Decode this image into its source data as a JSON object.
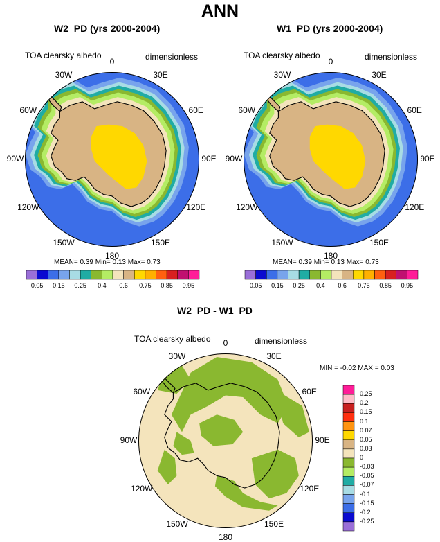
{
  "main_title": "ANN",
  "panels": [
    {
      "title": "W2_PD (yrs 2000-2004)",
      "left_label": "TOA clearsky albedo",
      "right_label": "dimensionless",
      "lon_labels": [
        "0",
        "30E",
        "60E",
        "90E",
        "120E",
        "150E",
        "180",
        "150W",
        "120W",
        "90W",
        "60W",
        "30W"
      ],
      "stats": "MEAN=  0.39  Min=  0.13  Max=  0.73"
    },
    {
      "title": "W1_PD (yrs 2000-2004)",
      "left_label": "TOA clearsky albedo",
      "right_label": "dimensionless",
      "lon_labels": [
        "0",
        "30E",
        "60E",
        "90E",
        "120E",
        "150E",
        "180",
        "150W",
        "120W",
        "90W",
        "60W",
        "30W"
      ],
      "stats": "MEAN=  0.39  Min=  0.13  Max=  0.73"
    },
    {
      "title": "W2_PD - W1_PD",
      "left_label": "TOA clearsky albedo",
      "right_label": "dimensionless",
      "lon_labels": [
        "0",
        "30E",
        "60E",
        "90E",
        "120E",
        "150E",
        "180",
        "150W",
        "120W",
        "90W",
        "60W",
        "30W"
      ],
      "stats": "MIN = -0.02 MAX =  0.03"
    }
  ],
  "colorbar_levels": [
    "0.05",
    "0.15",
    "0.25",
    "0.4",
    "0.6",
    "0.75",
    "0.85",
    "0.95"
  ],
  "colorbar_colors": [
    "#9a6fd8",
    "#0a0ad0",
    "#3c6ee8",
    "#78a4ec",
    "#a8dce4",
    "#20aca4",
    "#8ab830",
    "#b4ec64",
    "#f4e4bc",
    "#d8b484",
    "#ffd800",
    "#ffb000",
    "#ff6010",
    "#d82020",
    "#c01070",
    "#ff1c98"
  ],
  "diff_levels": [
    "0.25",
    "0.2",
    "0.15",
    "0.1",
    "0.07",
    "0.05",
    "0.03",
    "0",
    "-0.03",
    "-0.05",
    "-0.07",
    "-0.1",
    "-0.15",
    "-0.2",
    "-0.25"
  ],
  "diff_colors": [
    "#ff1c98",
    "#ffbcc8",
    "#c82020",
    "#ff3010",
    "#ff9410",
    "#ffd800",
    "#d8b484",
    "#f4e4bc",
    "#8ab830",
    "#b4ec64",
    "#20aca4",
    "#a8dce4",
    "#78a4ec",
    "#3c6ee8",
    "#0a0ad0",
    "#9a6fd8"
  ],
  "map_colors": {
    "ocean_far": "#3c6ee8",
    "light_blue": "#78a4ec",
    "pale_cyan": "#a8dce4",
    "teal": "#20aca4",
    "green": "#8ab830",
    "light_green": "#b4ec64",
    "cream": "#f4e4bc",
    "tan": "#d8b484",
    "yellow": "#ffd800"
  }
}
